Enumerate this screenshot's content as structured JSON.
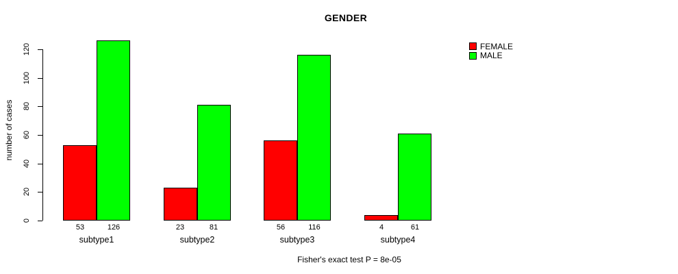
{
  "chart_data": {
    "type": "bar",
    "title": "GENDER",
    "ylabel": "number of cases",
    "xlabel": "",
    "categories": [
      "subtype1",
      "subtype2",
      "subtype3",
      "subtype4"
    ],
    "series": [
      {
        "name": "FEMALE",
        "color": "#FF0000",
        "values": [
          53,
          23,
          56,
          4
        ]
      },
      {
        "name": "MALE",
        "color": "#00FF00",
        "values": [
          126,
          81,
          116,
          61
        ]
      }
    ],
    "show_bar_values": true,
    "ylim": [
      0,
      120
    ],
    "yticks": [
      0,
      20,
      40,
      60,
      80,
      100,
      120
    ],
    "grid": false,
    "legend_position": "top-right",
    "note": "Fisher's exact test P = 8e-05"
  }
}
